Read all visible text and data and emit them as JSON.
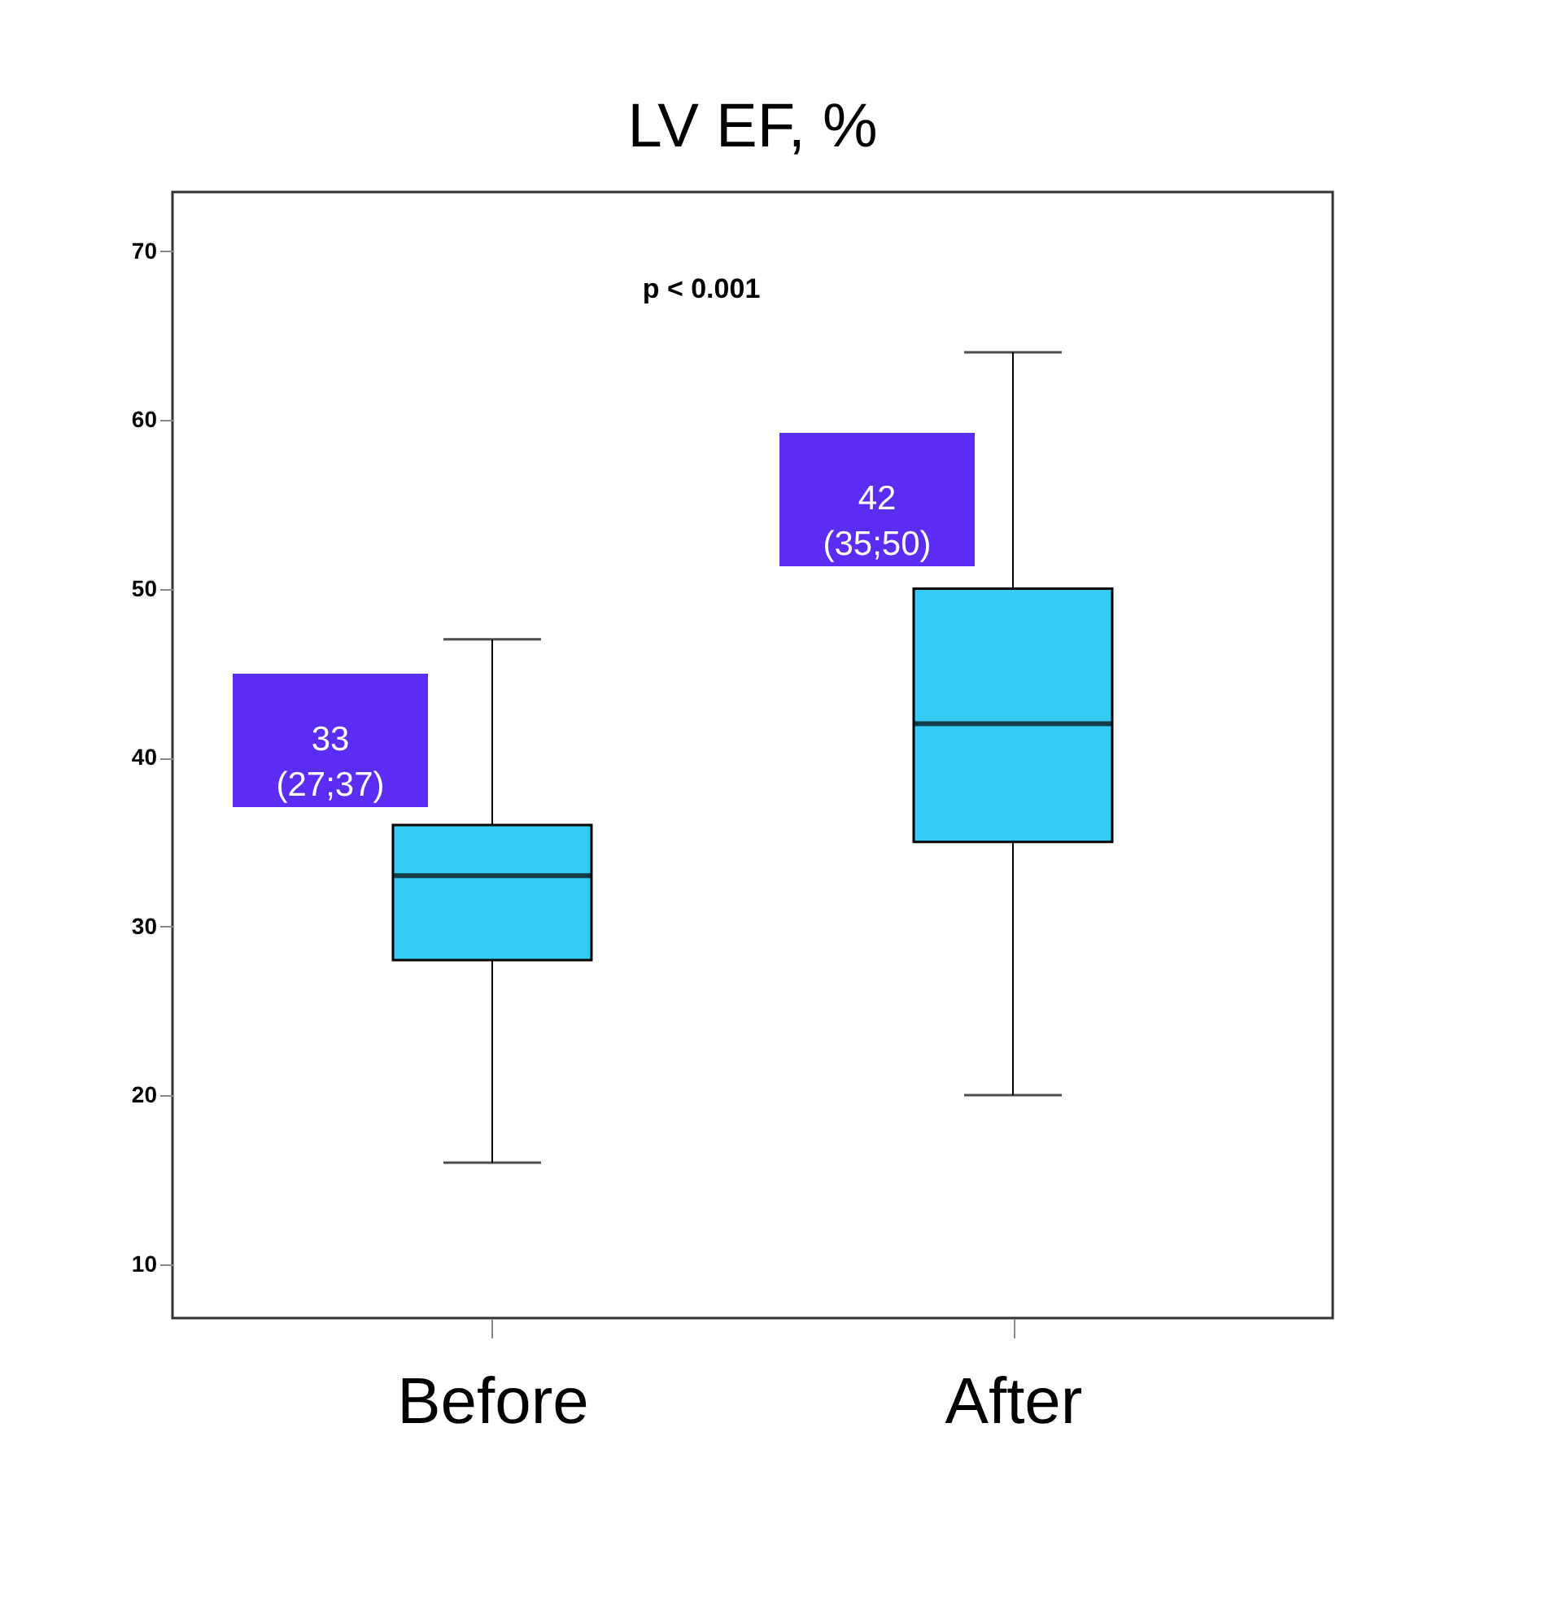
{
  "chart_data": {
    "type": "box",
    "title": "LV EF, %",
    "categories": [
      "Before",
      "After"
    ],
    "boxes": [
      {
        "low": 16,
        "q1": 28,
        "median": 33,
        "q3": 36,
        "high": 47
      },
      {
        "low": 20,
        "q1": 35,
        "median": 42,
        "q3": 50,
        "high": 64
      }
    ],
    "color": "#33ccf5",
    "ylim": [
      6.8,
      73.5
    ],
    "yticks": [
      10,
      20,
      30,
      40,
      50,
      60,
      70
    ],
    "grid": false,
    "annotations": [
      "p < 0.001",
      "33\n(27;37)",
      "42\n(35;50)"
    ]
  }
}
